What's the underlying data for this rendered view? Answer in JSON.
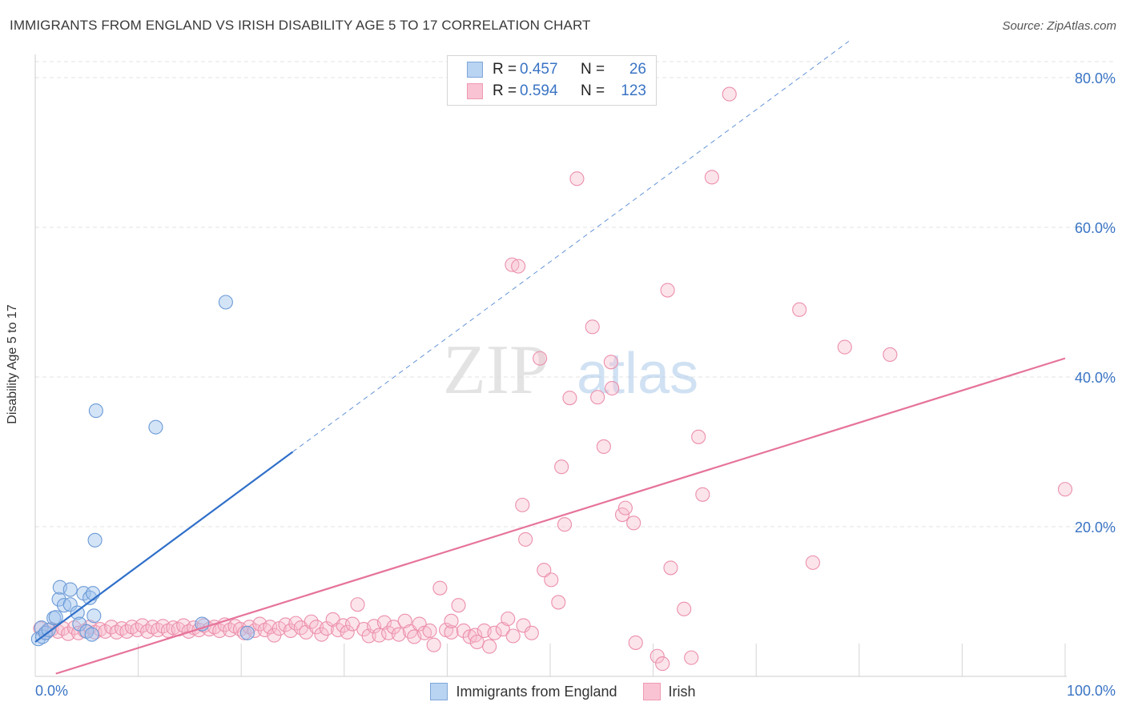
{
  "title": "IMMIGRANTS FROM ENGLAND VS IRISH DISABILITY AGE 5 TO 17 CORRELATION CHART",
  "source": "Source: ZipAtlas.com",
  "watermark": {
    "zip": "ZIP",
    "atlas": "atlas"
  },
  "legend": {
    "r_label": "R =",
    "n_label": "N =",
    "rows": [
      {
        "name": "Immigrants from England",
        "r": "0.457",
        "n": "26",
        "fill": "#b9d3f2",
        "stroke": "#7ea6d8"
      },
      {
        "name": "Irish",
        "r": "0.594",
        "n": "123",
        "fill": "#f9c3d3",
        "stroke": "#ee9ab2"
      }
    ]
  },
  "colors": {
    "blue_point_fill": "rgba(160,196,238,0.45)",
    "blue_point_stroke": "#6b9ad6",
    "blue_line": "#2f6fc9",
    "pink_point_fill": "rgba(248,188,206,0.40)",
    "pink_point_stroke": "#eb8fab",
    "pink_line": "#e6739a",
    "tick_label": "#3a74c4",
    "grid": "#e3e3e3"
  },
  "chart_data": {
    "type": "scatter",
    "title": "IMMIGRANTS FROM ENGLAND VS IRISH DISABILITY AGE 5 TO 17 CORRELATION CHART",
    "xlabel": "",
    "ylabel": "Disability Age 5 to 17",
    "xlim": [
      0,
      100
    ],
    "ylim": [
      0,
      85
    ],
    "x_tick_labels": [
      {
        "value": 0,
        "label": "0.0%"
      },
      {
        "value": 100,
        "label": "100.0%"
      }
    ],
    "y_tick_labels": [
      {
        "value": 20,
        "label": "20.0%"
      },
      {
        "value": 40,
        "label": "40.0%"
      },
      {
        "value": 60,
        "label": "60.0%"
      },
      {
        "value": 80,
        "label": "80.0%"
      }
    ],
    "grid": true,
    "legend_position": "top-center",
    "series": [
      {
        "name": "Immigrants from England",
        "r": 0.457,
        "n": 26,
        "trend": {
          "x0": 0,
          "y0": 4.6,
          "x1": 25,
          "y1": 30.0,
          "dashed_to_x": 79
        },
        "points": [
          [
            0.3,
            5.0
          ],
          [
            0.6,
            6.5
          ],
          [
            0.7,
            5.3
          ],
          [
            1.0,
            5.8
          ],
          [
            1.3,
            6.2
          ],
          [
            1.8,
            7.8
          ],
          [
            2.0,
            7.9
          ],
          [
            2.3,
            10.3
          ],
          [
            2.4,
            11.9
          ],
          [
            2.8,
            9.5
          ],
          [
            3.4,
            9.6
          ],
          [
            3.4,
            11.6
          ],
          [
            4.1,
            8.5
          ],
          [
            4.3,
            7.0
          ],
          [
            4.7,
            11.1
          ],
          [
            5.3,
            10.5
          ],
          [
            5.6,
            11.1
          ],
          [
            5.0,
            6.0
          ],
          [
            5.7,
            8.1
          ],
          [
            5.8,
            18.2
          ],
          [
            5.9,
            35.5
          ],
          [
            11.7,
            33.3
          ],
          [
            16.2,
            7.0
          ],
          [
            18.5,
            50.0
          ],
          [
            20.6,
            5.8
          ],
          [
            5.5,
            5.6
          ]
        ]
      },
      {
        "name": "Irish",
        "r": 0.594,
        "n": 123,
        "trend": {
          "x0": 0,
          "y0": -0.5,
          "x1": 100,
          "y1": 42.5
        },
        "points": [
          [
            0.5,
            6.4
          ],
          [
            1.1,
            5.9
          ],
          [
            1.6,
            6.3
          ],
          [
            2.2,
            6.0
          ],
          [
            2.7,
            6.4
          ],
          [
            3.2,
            5.7
          ],
          [
            3.8,
            6.5
          ],
          [
            4.2,
            5.8
          ],
          [
            4.8,
            6.1
          ],
          [
            5.3,
            6.6
          ],
          [
            5.8,
            5.9
          ],
          [
            6.3,
            6.3
          ],
          [
            6.8,
            6.0
          ],
          [
            7.4,
            6.6
          ],
          [
            7.9,
            5.9
          ],
          [
            8.4,
            6.4
          ],
          [
            8.9,
            6.0
          ],
          [
            9.4,
            6.6
          ],
          [
            9.9,
            6.2
          ],
          [
            10.4,
            6.8
          ],
          [
            10.9,
            6.0
          ],
          [
            11.4,
            6.6
          ],
          [
            11.9,
            6.2
          ],
          [
            12.4,
            6.7
          ],
          [
            12.9,
            6.1
          ],
          [
            13.4,
            6.5
          ],
          [
            13.9,
            6.3
          ],
          [
            14.4,
            6.8
          ],
          [
            14.9,
            6.0
          ],
          [
            15.4,
            6.5
          ],
          [
            15.9,
            6.2
          ],
          [
            16.4,
            6.8
          ],
          [
            16.9,
            6.3
          ],
          [
            17.4,
            6.6
          ],
          [
            17.9,
            6.1
          ],
          [
            18.4,
            6.9
          ],
          [
            18.9,
            6.2
          ],
          [
            19.4,
            6.7
          ],
          [
            19.9,
            6.3
          ],
          [
            20.3,
            5.8
          ],
          [
            20.8,
            6.6
          ],
          [
            21.3,
            6.1
          ],
          [
            21.8,
            7.0
          ],
          [
            22.3,
            6.2
          ],
          [
            22.8,
            6.6
          ],
          [
            23.2,
            5.5
          ],
          [
            23.7,
            6.4
          ],
          [
            24.3,
            6.9
          ],
          [
            24.8,
            6.1
          ],
          [
            25.3,
            7.1
          ],
          [
            25.8,
            6.5
          ],
          [
            26.3,
            5.9
          ],
          [
            26.8,
            7.3
          ],
          [
            27.3,
            6.6
          ],
          [
            27.8,
            5.6
          ],
          [
            28.3,
            6.4
          ],
          [
            28.9,
            7.6
          ],
          [
            29.4,
            6.2
          ],
          [
            29.9,
            6.8
          ],
          [
            30.3,
            5.9
          ],
          [
            30.8,
            7.0
          ],
          [
            31.3,
            9.6
          ],
          [
            31.9,
            6.3
          ],
          [
            32.4,
            5.4
          ],
          [
            32.9,
            6.7
          ],
          [
            33.4,
            5.5
          ],
          [
            33.9,
            7.2
          ],
          [
            34.3,
            5.8
          ],
          [
            34.8,
            6.6
          ],
          [
            35.3,
            5.6
          ],
          [
            35.9,
            7.4
          ],
          [
            36.4,
            6.0
          ],
          [
            36.8,
            5.3
          ],
          [
            37.3,
            7.0
          ],
          [
            37.8,
            5.8
          ],
          [
            38.3,
            6.1
          ],
          [
            38.7,
            4.2
          ],
          [
            39.3,
            11.8
          ],
          [
            39.9,
            6.2
          ],
          [
            40.4,
            5.9
          ],
          [
            40.4,
            7.4
          ],
          [
            41.1,
            9.5
          ],
          [
            41.6,
            6.1
          ],
          [
            42.2,
            5.3
          ],
          [
            42.7,
            5.5
          ],
          [
            42.9,
            4.6
          ],
          [
            43.6,
            6.1
          ],
          [
            44.1,
            4.0
          ],
          [
            44.6,
            5.8
          ],
          [
            45.4,
            6.3
          ],
          [
            45.9,
            7.7
          ],
          [
            46.4,
            5.4
          ],
          [
            47.3,
            22.9
          ],
          [
            47.6,
            18.3
          ],
          [
            47.4,
            6.8
          ],
          [
            48.2,
            5.8
          ],
          [
            46.3,
            55.0
          ],
          [
            46.9,
            54.8
          ],
          [
            49.0,
            42.5
          ],
          [
            49.4,
            14.2
          ],
          [
            50.1,
            12.9
          ],
          [
            50.8,
            9.9
          ],
          [
            51.1,
            28.0
          ],
          [
            51.4,
            20.3
          ],
          [
            51.9,
            37.2
          ],
          [
            52.6,
            66.5
          ],
          [
            54.1,
            46.7
          ],
          [
            54.6,
            37.3
          ],
          [
            55.2,
            30.7
          ],
          [
            56.0,
            38.5
          ],
          [
            57.0,
            21.6
          ],
          [
            57.3,
            22.5
          ],
          [
            58.1,
            20.5
          ],
          [
            55.9,
            42.0
          ],
          [
            58.3,
            4.5
          ],
          [
            60.4,
            2.7
          ],
          [
            60.9,
            1.7
          ],
          [
            61.4,
            51.6
          ],
          [
            61.7,
            14.5
          ],
          [
            63.0,
            9.0
          ],
          [
            63.7,
            2.5
          ],
          [
            64.4,
            32.0
          ],
          [
            64.8,
            24.3
          ],
          [
            65.7,
            66.7
          ],
          [
            67.4,
            77.8
          ],
          [
            74.2,
            49.0
          ],
          [
            75.5,
            15.2
          ],
          [
            78.6,
            44.0
          ],
          [
            83.0,
            43.0
          ],
          [
            100.0,
            25.0
          ]
        ]
      }
    ]
  }
}
